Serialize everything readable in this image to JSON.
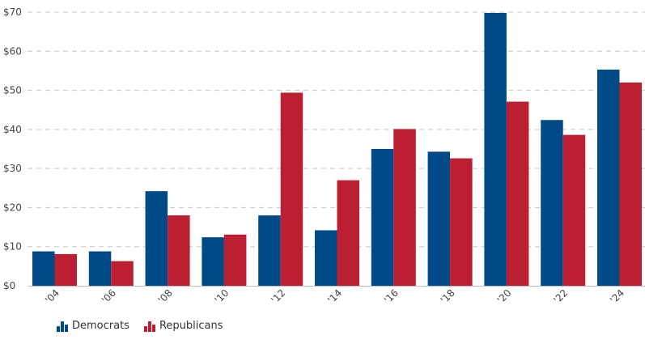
{
  "chart_data": {
    "type": "bar",
    "categories": [
      "'04",
      "'06",
      "'08",
      "'10",
      "'12",
      "'14",
      "'16",
      "'18",
      "'20",
      "'22",
      "'24"
    ],
    "series": [
      {
        "name": "Democrats",
        "color": "#004b87",
        "values": [
          8.8,
          8.8,
          24.2,
          12.4,
          18.0,
          14.2,
          35.0,
          34.3,
          69.8,
          42.4,
          55.3
        ]
      },
      {
        "name": "Republicans",
        "color": "#bc1f31",
        "values": [
          8.1,
          6.3,
          18.0,
          13.1,
          49.4,
          27.0,
          40.1,
          32.6,
          47.1,
          38.6,
          52.0
        ]
      }
    ],
    "y_ticks": [
      "$0",
      "$10",
      "$20",
      "$30",
      "$40",
      "$50",
      "$60",
      "$70"
    ],
    "ylim": [
      0,
      70
    ],
    "grid": true,
    "legend_position": "bottom-left",
    "title": "",
    "xlabel": "",
    "ylabel": ""
  },
  "legend": {
    "democrats_label": "Democrats",
    "republicans_label": "Republicans"
  }
}
